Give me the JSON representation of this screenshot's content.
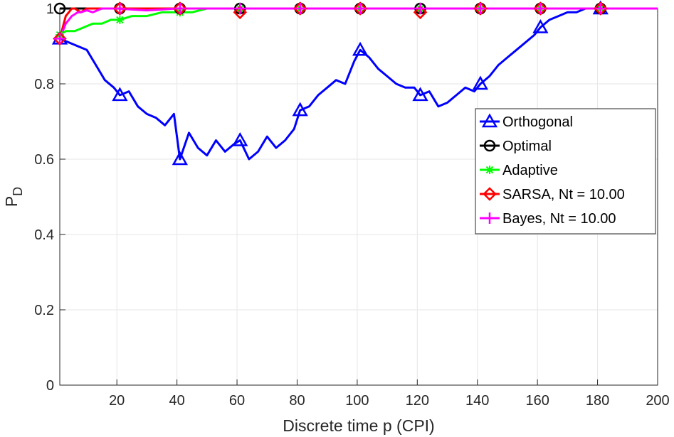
{
  "chart_data": {
    "type": "line",
    "xlabel": "Discrete time p (CPI)",
    "ylabel": "P",
    "ylabel_subscript": "D",
    "xlim": [
      1,
      200
    ],
    "ylim": [
      0,
      1
    ],
    "xticks": [
      20,
      40,
      60,
      80,
      100,
      120,
      140,
      160,
      180,
      200
    ],
    "xtick_labels": [
      "20",
      "40",
      "60",
      "80",
      "100",
      "120",
      "140",
      "160",
      "180",
      "200"
    ],
    "yticks": [
      0,
      0.2,
      0.4,
      0.6,
      0.8,
      1
    ],
    "ytick_labels": [
      "0",
      "0.2",
      "0.4",
      "0.6",
      "0.8",
      "1"
    ],
    "grid": true,
    "legend_position": "right",
    "series": [
      {
        "name": "Orthogonal",
        "color": "#0000ff",
        "marker": "triangle",
        "marker_x": [
          1,
          21,
          41,
          61,
          81,
          101,
          121,
          141,
          161,
          181
        ],
        "x": [
          1,
          4,
          7,
          10,
          13,
          16,
          19,
          21,
          24,
          27,
          30,
          33,
          36,
          39,
          41,
          44,
          47,
          50,
          53,
          56,
          59,
          61,
          64,
          67,
          70,
          73,
          76,
          79,
          81,
          84,
          87,
          90,
          93,
          96,
          99,
          101,
          104,
          107,
          110,
          113,
          116,
          119,
          121,
          124,
          127,
          130,
          133,
          136,
          139,
          141,
          144,
          147,
          150,
          153,
          156,
          159,
          161,
          164,
          167,
          170,
          173,
          176,
          179,
          181,
          185,
          190,
          195,
          200
        ],
        "y": [
          0.92,
          0.91,
          0.9,
          0.89,
          0.85,
          0.81,
          0.79,
          0.77,
          0.78,
          0.74,
          0.72,
          0.71,
          0.69,
          0.72,
          0.6,
          0.67,
          0.63,
          0.61,
          0.65,
          0.62,
          0.64,
          0.65,
          0.6,
          0.62,
          0.66,
          0.63,
          0.65,
          0.68,
          0.73,
          0.74,
          0.77,
          0.79,
          0.81,
          0.8,
          0.86,
          0.89,
          0.87,
          0.84,
          0.82,
          0.8,
          0.79,
          0.79,
          0.77,
          0.78,
          0.74,
          0.75,
          0.77,
          0.79,
          0.78,
          0.8,
          0.82,
          0.85,
          0.87,
          0.89,
          0.91,
          0.93,
          0.95,
          0.97,
          0.98,
          0.99,
          0.99,
          1.0,
          1.0,
          1.0,
          1.0,
          1.0,
          1.0,
          1.0
        ]
      },
      {
        "name": "Optimal",
        "color": "#000000",
        "marker": "circle",
        "marker_x": [
          1,
          21,
          41,
          61,
          81,
          101,
          121,
          141,
          161,
          181
        ],
        "x": [
          1,
          5,
          200
        ],
        "y": [
          1.0,
          1.0,
          1.0
        ]
      },
      {
        "name": "Adaptive",
        "color": "#00ff00",
        "marker": "asterisk",
        "marker_x": [
          1,
          21,
          41,
          61,
          81,
          101,
          121,
          141,
          161,
          181
        ],
        "x": [
          1,
          3,
          6,
          9,
          12,
          15,
          18,
          21,
          25,
          30,
          35,
          40,
          45,
          50,
          55,
          60,
          70,
          80,
          200
        ],
        "y": [
          0.93,
          0.94,
          0.94,
          0.95,
          0.96,
          0.96,
          0.97,
          0.97,
          0.98,
          0.98,
          0.99,
          0.99,
          0.99,
          1.0,
          1.0,
          1.0,
          1.0,
          1.0,
          1.0
        ]
      },
      {
        "name": "SARSA, Nt = 10.00",
        "color": "#ff0000",
        "marker": "diamond",
        "marker_x": [
          1,
          21,
          41,
          61,
          81,
          101,
          121,
          141,
          161,
          181
        ],
        "x": [
          1,
          2,
          3,
          4,
          5,
          6,
          8,
          10,
          15,
          20,
          60,
          61,
          62,
          120,
          121,
          122,
          200
        ],
        "y": [
          0.92,
          0.95,
          0.98,
          0.99,
          1.0,
          1.0,
          0.99,
          1.0,
          1.0,
          1.0,
          1.0,
          0.99,
          1.0,
          1.0,
          0.99,
          1.0,
          1.0
        ]
      },
      {
        "name": "Bayes, Nt = 10.00",
        "color": "#ff00ff",
        "marker": "plus",
        "marker_x": [
          1,
          21,
          41,
          61,
          81,
          101,
          121,
          141,
          161,
          181
        ],
        "x": [
          1,
          2,
          3,
          4,
          5,
          6,
          7,
          8,
          10,
          12,
          15,
          20,
          30,
          40,
          50,
          200
        ],
        "y": [
          0.92,
          0.94,
          0.96,
          0.97,
          0.98,
          0.985,
          0.99,
          0.99,
          0.995,
          0.99,
          1.0,
          1.0,
          0.995,
          1.0,
          1.0,
          1.0
        ]
      }
    ]
  }
}
